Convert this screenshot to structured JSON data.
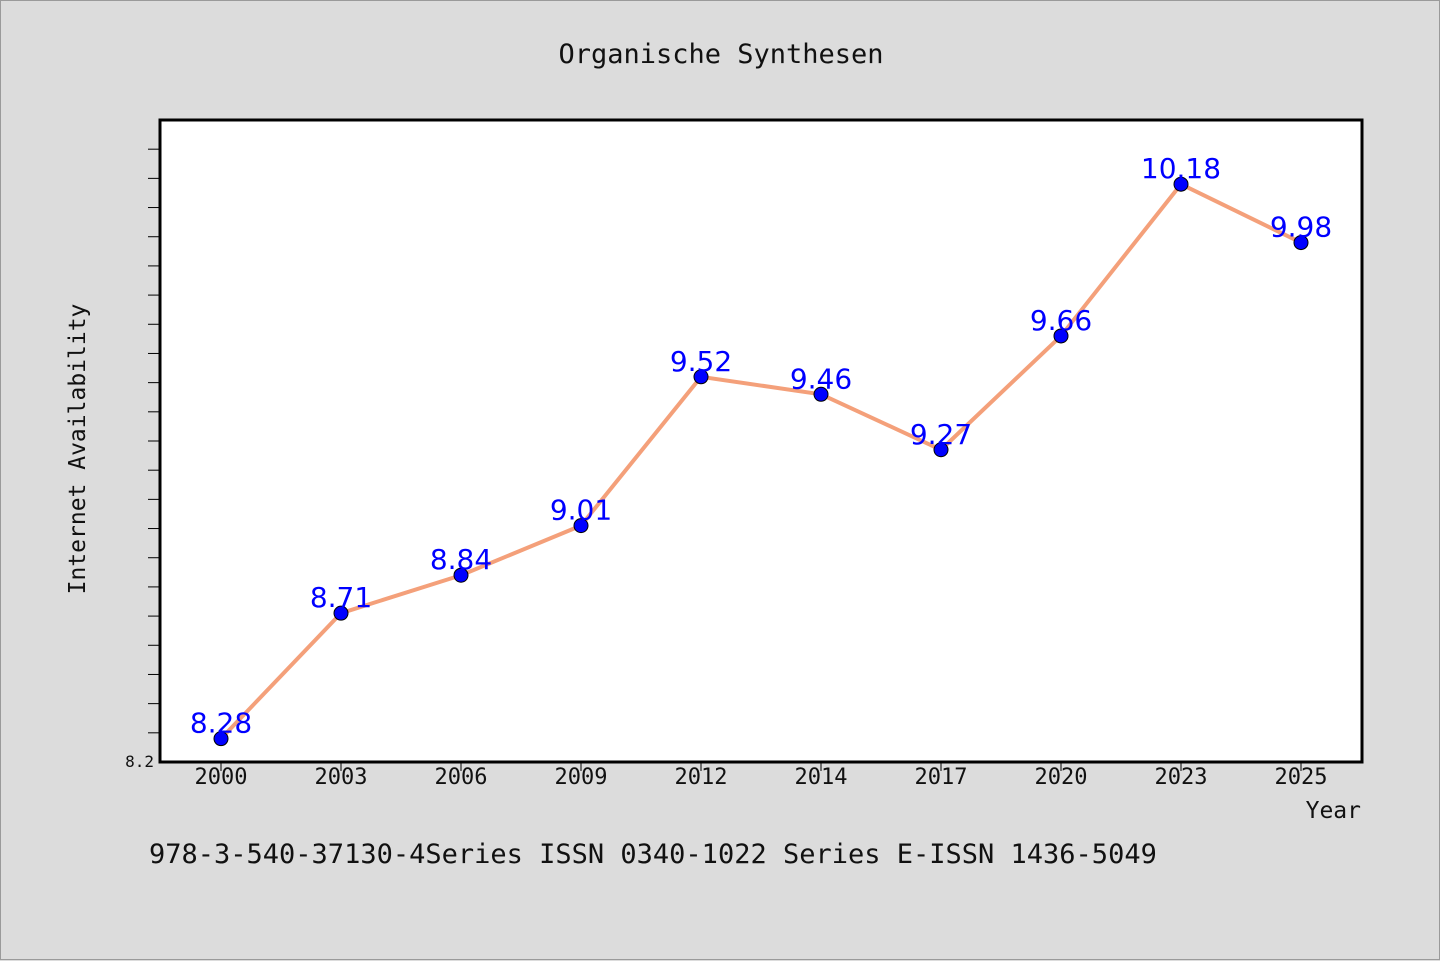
{
  "chart_data": {
    "type": "line",
    "title": "Organische Synthesen",
    "xlabel": "Year",
    "ylabel": "Internet Availability",
    "categories": [
      "2000",
      "2003",
      "2006",
      "2009",
      "2012",
      "2014",
      "2017",
      "2020",
      "2023",
      "2025"
    ],
    "series": [
      {
        "values": [
          8.28,
          8.71,
          8.84,
          9.01,
          9.52,
          9.46,
          9.27,
          9.66,
          10.18,
          9.98
        ]
      }
    ],
    "data_labels": [
      "8.28",
      "8.71",
      "8.84",
      "9.01",
      "9.52",
      "9.46",
      "9.27",
      "9.66",
      "10.18",
      "9.98"
    ],
    "ylim": [
      8.2,
      10.4
    ],
    "y_tick_labels": [
      "8.2"
    ],
    "grid": false,
    "line_color": "#f4a07a",
    "marker_color": "#0000ff",
    "label_color": "#0000ff",
    "background_color": "#dcdcdc",
    "plot_background": "#ffffff"
  },
  "footer": {
    "text": "978-3-540-37130-4Series ISSN 0340-1022 Series E-ISSN 1436-5049"
  }
}
